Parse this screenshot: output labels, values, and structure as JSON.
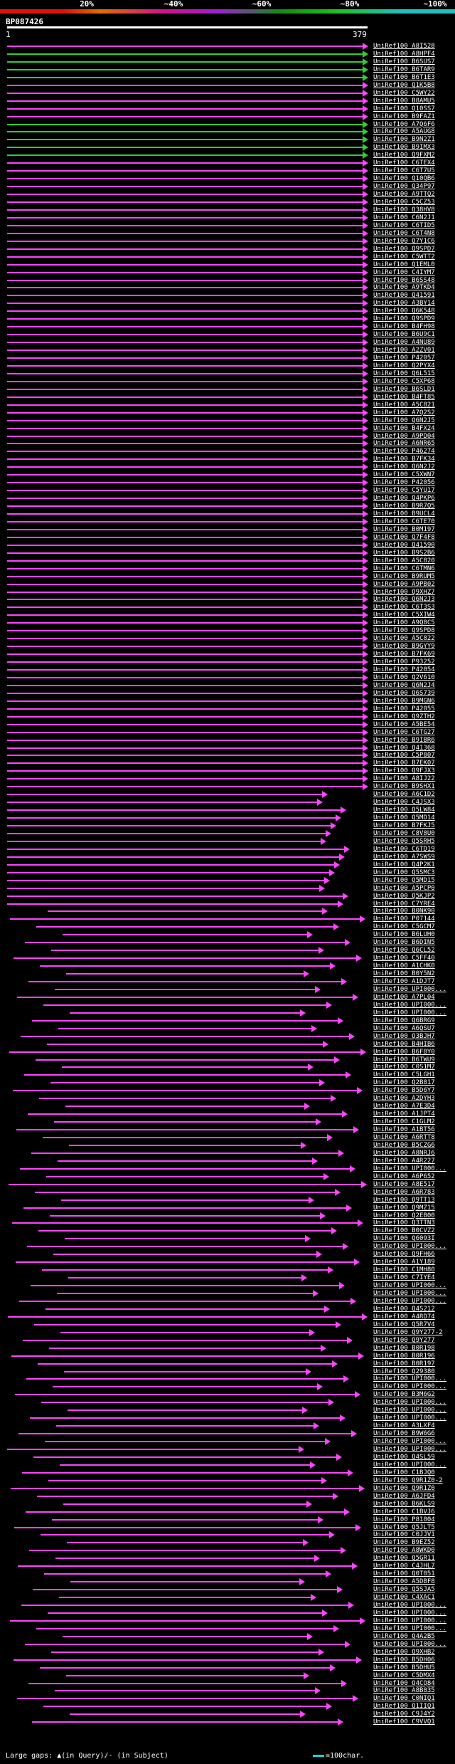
{
  "legend": {
    "labels": [
      "20%",
      "~40%",
      "~60%",
      "~80%",
      "~100%"
    ]
  },
  "query": {
    "id": "BP087426",
    "start": "1",
    "end": "379"
  },
  "footer": {
    "text": "Large gaps: ▲(in Query)/- (in Subject)",
    "scale": "=100char."
  },
  "colors": {
    "green": "#33cc33",
    "magenta": "#ff44ff",
    "orange": "#ff8800"
  },
  "hits": [
    "UniRef100_A8I528",
    "UniRef100_A8HPF4",
    "UniRef100_B6SUS7",
    "UniRef100_B6TAR9",
    "UniRef100_B6T1E3",
    "UniRef100_Q1K5B8",
    "UniRef100_C5WY22",
    "UniRef100_B8AMU5",
    "UniRef100_Q10SS7",
    "UniRef100_B9FAZ1",
    "UniRef100_A7Q6F6",
    "UniRef100_A5AUG8",
    "UniRef100_B9N2Z1",
    "UniRef100_B9IMX3",
    "UniRef100_Q9FXM2",
    "UniRef100_C6TEX4",
    "UniRef100_C6T7U5",
    "UniRef100_Q10QB6",
    "UniRef100_Q34P97",
    "UniRef100_A9TTQ2",
    "UniRef100_C5CZ53",
    "UniRef100_Q38HV8",
    "UniRef100_C6N2J1",
    "UniRef100_C6TID5",
    "UniRef100_C6T4N8",
    "UniRef100_Q7Y1C6",
    "UniRef100_Q9SPD7",
    "UniRef100_C5WTT2",
    "UniRef100_Q1EML0",
    "UniRef100_C4IYM7",
    "UniRef100_B6SS48",
    "UniRef100_A9TKD4",
    "UniRef100_Q41591",
    "UniRef100_A3BY14",
    "UniRef100_Q6K548",
    "UniRef100_Q9SPD9",
    "UniRef100_B4FH98",
    "UniRef100_B6U9C1",
    "UniRef100_A4NU89",
    "UniRef100_A2ZV01",
    "UniRef100_P42057",
    "UniRef100_Q2PYX4",
    "UniRef100_Q6L515",
    "UniRef100_C5XP68",
    "UniRef100_B6SLD1",
    "UniRef100_B4FT85",
    "UniRef100_A5C821",
    "UniRef100_A7Q2S2",
    "UniRef100_Q6N2J5",
    "UniRef100_B4FX24",
    "UniRef100_A9PD04",
    "UniRef100_A6NR65",
    "UniRef100_P46274",
    "UniRef100_B7FK34",
    "UniRef100_Q6N2J2",
    "UniRef100_C5XWN7",
    "UniRef100_P42056",
    "UniRef100_C5YU17",
    "UniRef100_Q4PKP6",
    "UniRef100_B9R7Q5",
    "UniRef100_B9UCL4",
    "UniRef100_C6TE70",
    "UniRef100_B0M197",
    "UniRef100_Q7F4F8",
    "UniRef100_Q41590",
    "UniRef100_B9S2B6",
    "UniRef100_A5C820",
    "UniRef100_C6TMN6",
    "UniRef100_B9RUM5",
    "UniRef100_A9PB02",
    "UniRef100_Q9XHZ7",
    "UniRef100_Q6N2J3",
    "UniRef100_C6T3S3",
    "UniRef100_C5XIW4",
    "UniRef100_A9Q8C5",
    "UniRef100_Q9SPD8",
    "UniRef100_A5C822",
    "UniRef100_B9GYY9",
    "UniRef100_B7FK69",
    "UniRef100_P93252",
    "UniRef100_P42054",
    "UniRef100_Q2V610",
    "UniRef100_Q6N2J4",
    "UniRef100_Q6S739",
    "UniRef100_B9MGN6",
    "UniRef100_P42055",
    "UniRef100_Q9ZTH2",
    "UniRef100_A5BE54",
    "UniRef100_C6TG27",
    "UniRef100_B9IBR6",
    "UniRef100_Q41368",
    "UniRef100_C5P807",
    "UniRef100_B7EK07",
    "UniRef100_Q9FJX3",
    "UniRef100_A8IJ22",
    "UniRef100_B9SHX1",
    "UniRef100_A6C1D2",
    "UniRef100_C4JSX3",
    "UniRef100_Q5LW84",
    "UniRef100_Q5MD14",
    "UniRef100_B7FKJ5",
    "UniRef100_C8V8U0",
    "UniRef100_Q5SRH5",
    "UniRef100_C6TD19",
    "UniRef100_A7SWS9",
    "UniRef100_Q4P2K1",
    "UniRef100_Q5SMC3",
    "UniRef100_Q5MD15",
    "UniRef100_A5PCP0",
    "UniRef100_Q5KJP2",
    "UniRef100_C7YRE4",
    "UniRef100_B0NK90",
    "UniRef100_P07144",
    "UniRef100_C5GCM7",
    "UniRef100_B6LUH0",
    "UniRef100_B6DIN5",
    "UniRef100_Q6CL52",
    "UniRef100_C5FF40",
    "UniRef100_A1CHK0",
    "UniRef100_B0Y5N2",
    "UniRef100_A1DJT7",
    "UniRef100_UPI000...",
    "UniRef100_A7PL04",
    "UniRef100_UPI000...",
    "UniRef100_UPI000...",
    "UniRef100_Q6BRG9",
    "UniRef100_A6QSU7",
    "UniRef100_Q3BJH7",
    "UniRef100_B4HIB6",
    "UniRef100_B6F8Y0",
    "UniRef100_B6TWU9",
    "UniRef100_C0S1M7",
    "UniRef100_C5LGH1",
    "UniRef100_Q2B817",
    "UniRef100_B5D6Y7",
    "UniRef100_A2DYH3",
    "UniRef100_A7E3D4",
    "UniRef100_A1JPT4",
    "UniRef100_C1GLM2",
    "UniRef100_A1BT56",
    "UniRef100_A6RTT8",
    "UniRef100_B5CZG6",
    "UniRef100_A8NRJ6",
    "UniRef100_A4R227",
    "UniRef100_UPI000...",
    "UniRef100_A6P652",
    "UniRef100_A8E517",
    "UniRef100_A6R783",
    "UniRef100_Q9TT13",
    "UniRef100_Q9MZ15",
    "UniRef100_Q2EB00",
    "UniRef100_Q3TTN3",
    "UniRef100_B0CVZ2",
    "UniRef100_Q6093I",
    "UniRef100_UPI000...",
    "UniRef100_Q9FH66",
    "UniRef100_A1Y189",
    "UniRef100_C1MH80",
    "UniRef100_C7IYE4",
    "UniRef100_UPI000...",
    "UniRef100_UPI000...",
    "UniRef100_UPI000...",
    "UniRef100_Q4S212",
    "UniRef100_A4RD74",
    "UniRef100_Q5R7V4",
    "UniRef100_Q9Y277-2",
    "UniRef100_Q9Y277",
    "UniRef100_B0R198",
    "UniRef100_B0R196",
    "UniRef100_B0R197",
    "UniRef100_Q29380",
    "UniRef100_UPI000...",
    "UniRef100_UPI000...",
    "UniRef100_B3M6G2",
    "UniRef100_UPI000...",
    "UniRef100_UPI000...",
    "UniRef100_UPI000...",
    "UniRef100_A3LXF4",
    "UniRef100_B9W6G6",
    "UniRef100_UPI000...",
    "UniRef100_UPI000...",
    "UniRef100_Q4SL59",
    "UniRef100_UPI000...",
    "UniRef100_C1BJQ0",
    "UniRef100_Q9R1Z0-2",
    "UniRef100_Q9R1Z0",
    "UniRef100_A6JFD4",
    "UniRef100_B6KLS9",
    "UniRef100_C1BVJ6",
    "UniRef100_P81004",
    "UniRef100_Q5JLT5",
    "UniRef100_C0JJV1",
    "UniRef100_B9EZ52",
    "UniRef100_A8WKD0",
    "UniRef100_Q5GR11",
    "UniRef100_C4JHL7",
    "UniRef100_Q0T051",
    "UniRef100_A5DBF8",
    "UniRef100_Q5SJA5",
    "UniRef100_C4XAC1",
    "UniRef100_UPI000...",
    "UniRef100_UPI000...",
    "UniRef100_UPI000...",
    "UniRef100_UPI000...",
    "UniRef100_Q4A2B5",
    "UniRef100_UPI000...",
    "UniRef100_Q9XHB2",
    "UniRef100_B5DH06",
    "UniRef100_B5DHU5",
    "UniRef100_C5DMX4",
    "UniRef100_Q4CQ84",
    "UniRef100_A8B835",
    "UniRef100_C0NIQ1",
    "UniRef100_Q1IIQ1",
    "UniRef100_C9J4Y2",
    "UniRef100_C9VVQ1"
  ]
}
